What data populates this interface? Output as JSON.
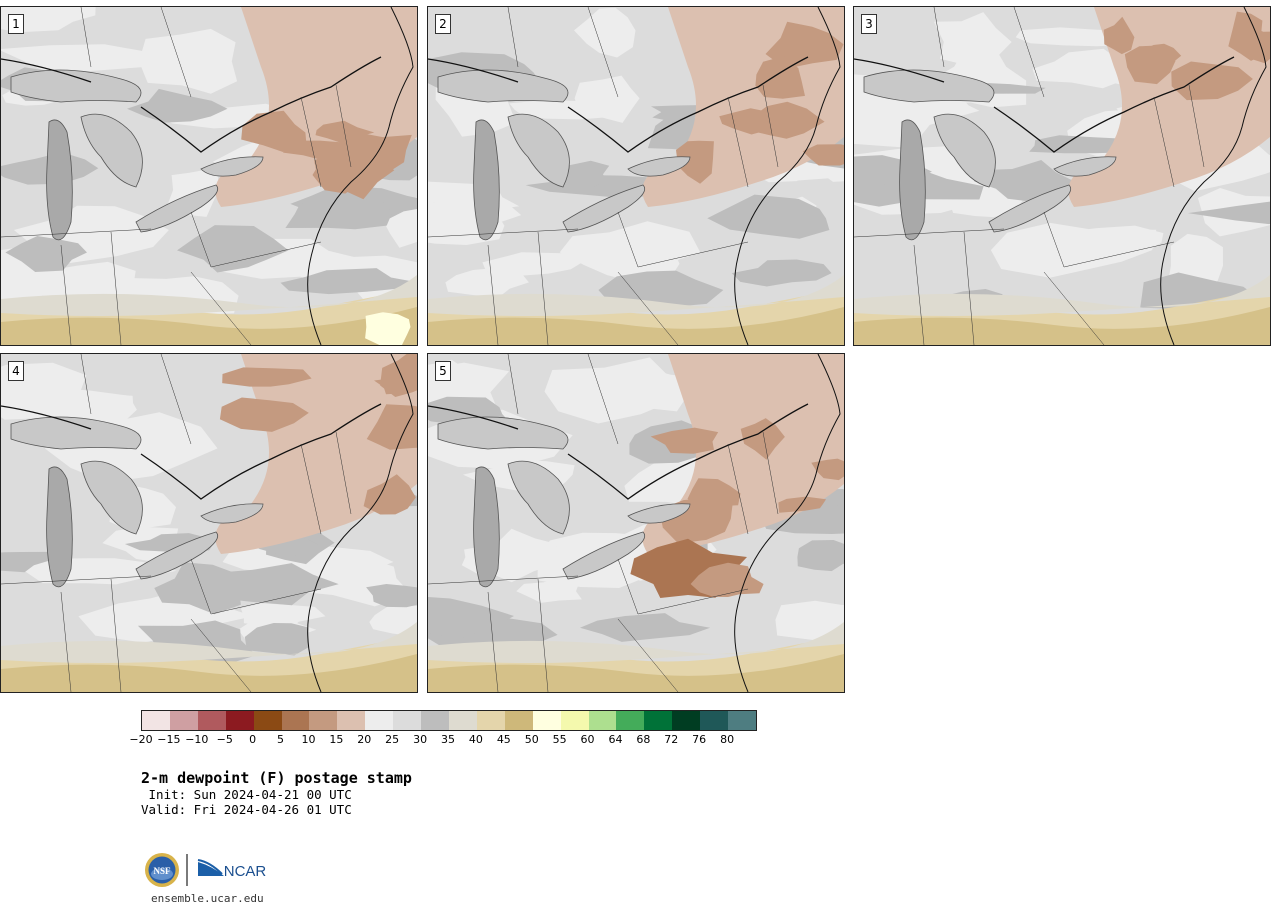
{
  "title": "2-m dewpoint (F) postage stamp",
  "init": " Init: Sun 2024-04-21 00 UTC",
  "valid": "Valid: Fri 2024-04-26 01 UTC",
  "website": "ensemble.ucar.edu",
  "logo": {
    "left_text": "NSF",
    "right_text": "NCAR"
  },
  "panels": [
    {
      "label": "1"
    },
    {
      "label": "2"
    },
    {
      "label": "3"
    },
    {
      "label": "4"
    },
    {
      "label": "5"
    }
  ],
  "colorbar": {
    "colors": [
      "#f2e4e4",
      "#cf9fa2",
      "#b05a5e",
      "#8c1a20",
      "#8b4a14",
      "#ab7552",
      "#c49a80",
      "#dcc0b0",
      "#ededed",
      "#dcdcdc",
      "#bdbdbd",
      "#dedbd0",
      "#e4d5ab",
      "#ceb87a",
      "#ffffe0",
      "#f4f9ad",
      "#addf8f",
      "#44ac5a",
      "#007238",
      "#003d22",
      "#1f5858",
      "#4e7d81"
    ],
    "ticks": [
      "−20",
      "−15",
      "−10",
      "−5",
      "0",
      "5",
      "10",
      "15",
      "20",
      "25",
      "30",
      "35",
      "40",
      "45",
      "50",
      "55",
      "60",
      "64",
      "68",
      "72",
      "76",
      "80"
    ]
  }
}
